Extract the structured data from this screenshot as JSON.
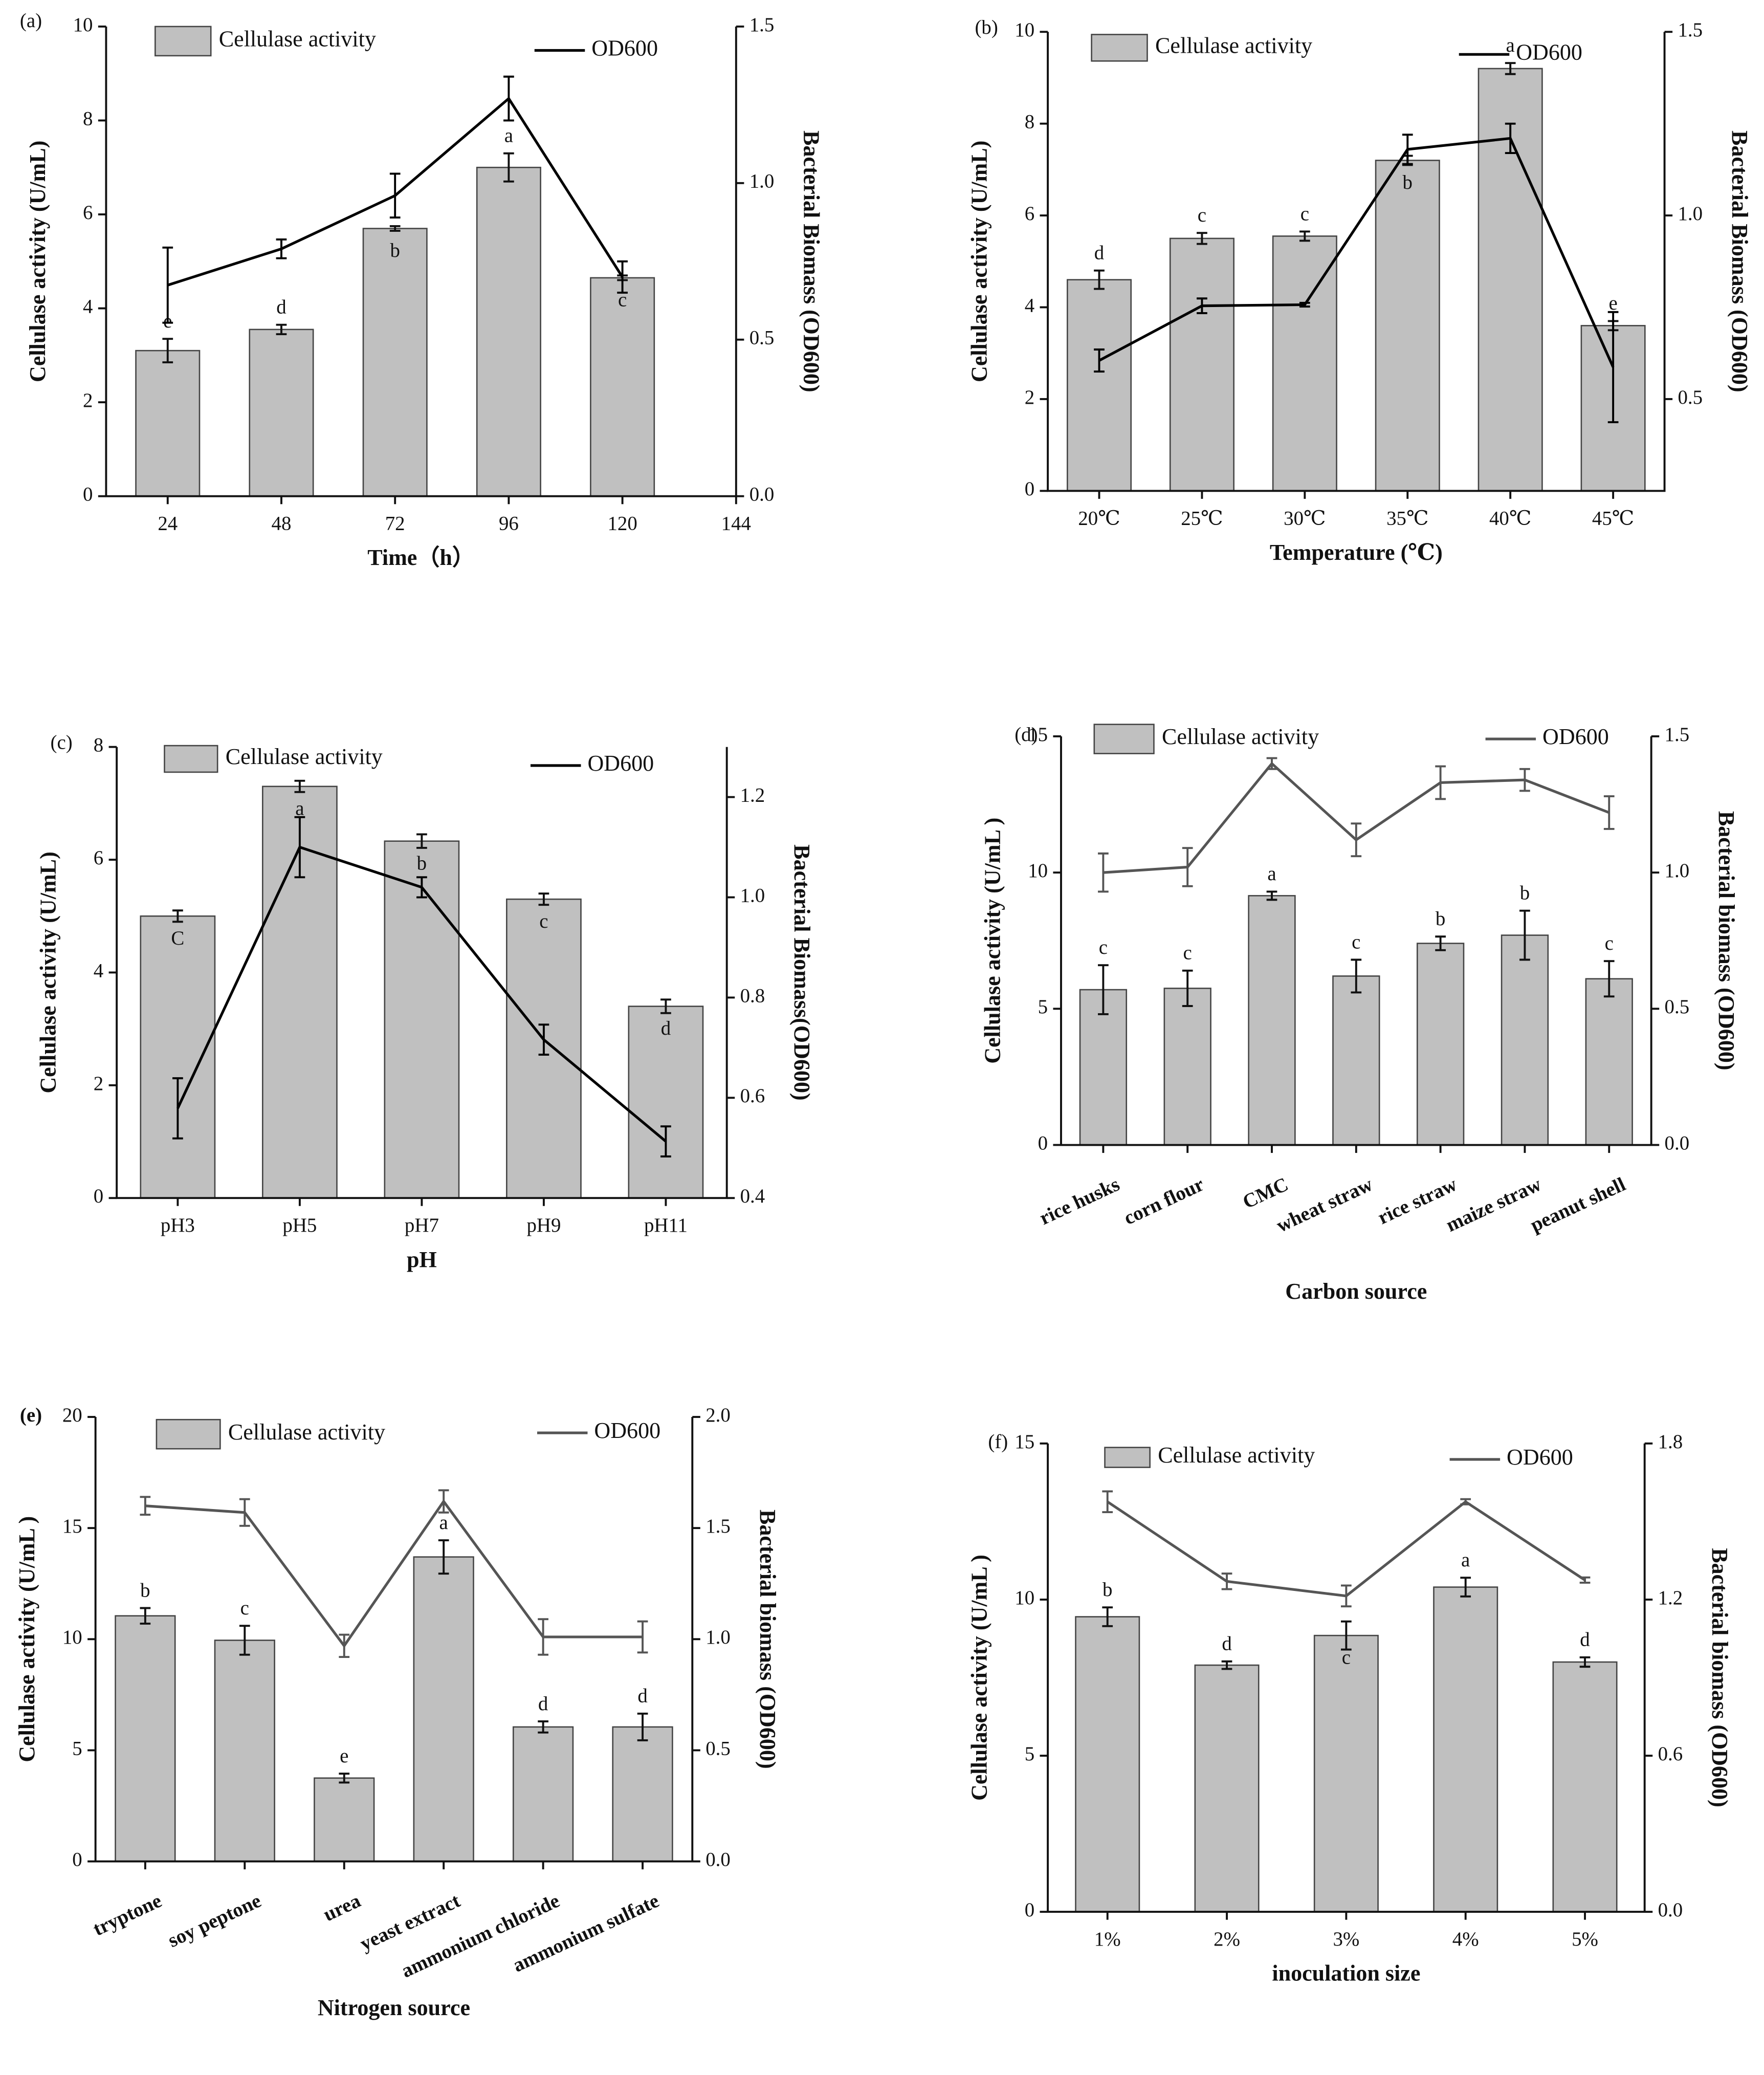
{
  "chart_data": [
    {
      "type": "bar",
      "label": "(a)",
      "x_label": "Time（h）",
      "y_label": "Cellulase activity (U/mL)",
      "y2_label": "Bacterial Biomass (OD600)",
      "x": [
        24,
        48,
        72,
        96,
        120
      ],
      "xlim": [
        11,
        144
      ],
      "xticks": [
        24,
        48,
        72,
        96,
        120,
        144
      ],
      "ylim": [
        0,
        10
      ],
      "yticks": [
        0,
        2,
        4,
        6,
        8,
        10
      ],
      "y2lim": [
        0,
        1.5
      ],
      "y2ticks": [
        {
          "value": 0,
          "label": "0.0"
        },
        0.5,
        {
          "value": 1,
          "label": "1.0"
        },
        1.5
      ],
      "series": [
        {
          "name": "Cellulase activity",
          "color": "#c0c0c0",
          "values": [
            3.1,
            3.55,
            5.7,
            7.0,
            4.65
          ],
          "errors": [
            0.25,
            0.1,
            0.05,
            0.3,
            0.05
          ],
          "annotations": [
            "e",
            "d",
            "b",
            "a",
            "c"
          ]
        },
        {
          "name": "OD600",
          "color": "#000000",
          "axis": "y2",
          "values": [
            0.674,
            0.79,
            0.96,
            1.27,
            0.7
          ],
          "errors": [
            0.12,
            0.03,
            0.07,
            0.07,
            0.05
          ]
        }
      ]
    },
    {
      "type": "bar",
      "label": "(b)",
      "x_label": "Temperature (℃)",
      "y_label": "Cellulase activity (U/mL)",
      "y2_label": "Bacterial Biomass (OD600)",
      "categories": [
        "20℃",
        "25℃",
        "30℃",
        "35℃",
        "40℃",
        "45℃"
      ],
      "ylim": [
        0,
        10
      ],
      "yticks": [
        0,
        2,
        4,
        6,
        8,
        10
      ],
      "y2lim": [
        0.25,
        1.5
      ],
      "y2ticks": [
        0.5,
        {
          "value": 1,
          "label": "1.0"
        },
        1.5
      ],
      "series": [
        {
          "name": "Cellulase activity",
          "color": "#c0c0c0",
          "values": [
            4.6,
            5.5,
            5.55,
            7.2,
            9.2,
            3.6
          ],
          "errors": [
            0.2,
            0.12,
            0.1,
            0.1,
            0.12,
            0.1
          ],
          "annotations": [
            "d",
            "c",
            "c",
            "b",
            "a",
            "e"
          ]
        },
        {
          "name": "OD600",
          "color": "#000000",
          "axis": "y2",
          "values": [
            0.605,
            0.754,
            0.757,
            1.18,
            1.21,
            0.587
          ],
          "errors": [
            0.03,
            0.02,
            0.005,
            0.04,
            0.04,
            0.15
          ]
        }
      ]
    },
    {
      "type": "bar",
      "label": "(c)",
      "x_label": "pH",
      "y_label": "Cellulase activity (U/mL)",
      "y2_label": "Bacterial Biomass(OD600)",
      "categories": [
        "pH3",
        "pH5",
        "pH7",
        "pH9",
        "pH11"
      ],
      "ylim": [
        0,
        8
      ],
      "yticks": [
        0,
        2,
        4,
        6,
        8
      ],
      "y2lim": [
        0.4,
        1.3
      ],
      "y2ticks": [
        0.4,
        0.6,
        0.8,
        {
          "value": 1,
          "label": "1.0"
        },
        1.2
      ],
      "series": [
        {
          "name": "Cellulase activity",
          "color": "#c0c0c0",
          "values": [
            5.0,
            7.3,
            6.33,
            5.3,
            3.4
          ],
          "errors": [
            0.1,
            0.1,
            0.12,
            0.1,
            0.12
          ],
          "annotations": [
            "C",
            "a",
            "b",
            "c",
            "d"
          ]
        },
        {
          "name": "OD600",
          "color": "#000000",
          "axis": "y2",
          "values": [
            0.579,
            1.1,
            1.02,
            0.716,
            0.513
          ],
          "errors": [
            0.06,
            0.06,
            0.02,
            0.03,
            0.03
          ]
        }
      ]
    },
    {
      "type": "bar",
      "label": "(d)",
      "x_label": "Carbon source",
      "y_label": "Cellulase activity (U/mL )",
      "y2_label": "Bacterial biomass (OD600)",
      "categories": [
        "rice husks",
        "corn flour",
        "CMC",
        "wheat straw",
        "rice straw",
        "maize straw",
        "peanut shell"
      ],
      "ylim": [
        0,
        15
      ],
      "yticks": [
        0,
        5,
        10,
        15
      ],
      "y2lim": [
        0,
        1.5
      ],
      "y2ticks": [
        {
          "value": 0,
          "label": "0.0"
        },
        0.5,
        {
          "value": 1,
          "label": "1.0"
        },
        1.5
      ],
      "series": [
        {
          "name": "Cellulase activity",
          "color": "#c0c0c0",
          "values": [
            5.7,
            5.75,
            9.15,
            6.2,
            7.4,
            7.7,
            6.1
          ],
          "errors": [
            0.9,
            0.65,
            0.15,
            0.6,
            0.25,
            0.9,
            0.65
          ],
          "annotations": [
            "c",
            "c",
            "a",
            "c",
            "b",
            "b",
            "c"
          ]
        },
        {
          "name": "OD600",
          "color": "#555555",
          "axis": "y2",
          "values": [
            1.0,
            1.02,
            1.4,
            1.12,
            1.33,
            1.34,
            1.22
          ],
          "errors": [
            0.07,
            0.07,
            0.02,
            0.06,
            0.06,
            0.04,
            0.06
          ]
        }
      ]
    },
    {
      "type": "bar",
      "label": "(e)",
      "x_label": "Nitrogen source",
      "y_label": "Cellulase activity (U/mL )",
      "y2_label": "Bacterial biomass (OD600)",
      "categories": [
        "tryptone",
        "soy peptone",
        "urea",
        "yeast extract",
        "ammonium chloride",
        "ammonium sulfate"
      ],
      "ylim": [
        0,
        20
      ],
      "yticks": [
        0,
        5,
        10,
        15,
        20
      ],
      "y2lim": [
        0,
        2
      ],
      "y2ticks": [
        {
          "value": 0,
          "label": "0.0"
        },
        0.5,
        {
          "value": 1,
          "label": "1.0"
        },
        1.5,
        {
          "value": 2,
          "label": "2.0"
        }
      ],
      "series": [
        {
          "name": "Cellulase activity",
          "color": "#c0c0c0",
          "values": [
            11.05,
            9.95,
            3.75,
            13.7,
            6.05,
            6.05
          ],
          "errors": [
            0.35,
            0.65,
            0.2,
            0.75,
            0.25,
            0.6
          ],
          "annotations": [
            "b",
            "c",
            "e",
            "a",
            "d",
            "d"
          ]
        },
        {
          "name": "OD600",
          "color": "#555555",
          "axis": "y2",
          "values": [
            1.6,
            1.57,
            0.97,
            1.62,
            1.01,
            1.01
          ],
          "errors": [
            0.04,
            0.06,
            0.05,
            0.05,
            0.08,
            0.07
          ]
        }
      ]
    },
    {
      "type": "bar",
      "label": "(f)",
      "x_label": "inoculation size",
      "y_label": "Cellulase activity (U/mL )",
      "y2_label": "Bacterial biomass (OD600)",
      "categories": [
        "1%",
        "2%",
        "3%",
        "4%",
        "5%"
      ],
      "ylim": [
        0,
        15
      ],
      "yticks": [
        0,
        5,
        10,
        15
      ],
      "y2lim": [
        0,
        1.8
      ],
      "y2ticks": [
        {
          "value": 0,
          "label": "0.0"
        },
        0.6,
        1.2,
        1.8
      ],
      "series": [
        {
          "name": "Cellulase activity",
          "color": "#c0c0c0",
          "values": [
            9.45,
            7.9,
            8.85,
            10.4,
            8.0
          ],
          "errors": [
            0.3,
            0.12,
            0.45,
            0.3,
            0.15
          ],
          "annotations": [
            "b",
            "d",
            "c",
            "a",
            "d"
          ]
        },
        {
          "name": "OD600",
          "color": "#555555",
          "axis": "y2",
          "values": [
            1.576,
            1.27,
            1.214,
            1.576,
            1.275
          ],
          "errors": [
            0.04,
            0.03,
            0.04,
            0.01,
            0.01
          ]
        }
      ]
    }
  ]
}
